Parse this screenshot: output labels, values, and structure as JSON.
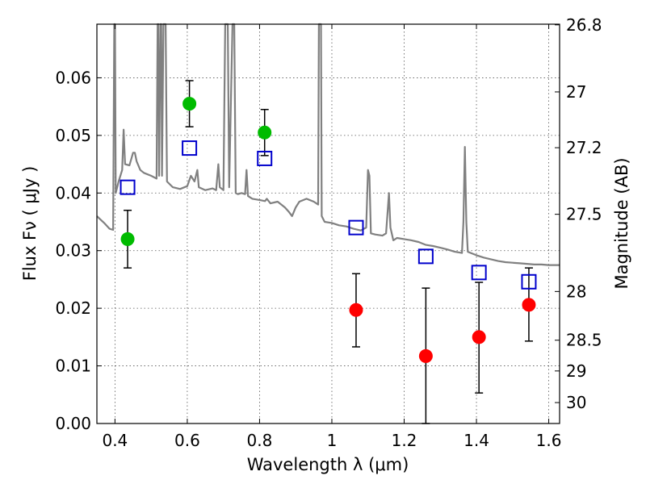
{
  "chart_data": {
    "type": "scatter",
    "xlabel": "Wavelength  λ (μm)",
    "ylabel": "Flux  Fν  ( μJy )",
    "y2label": "Magnitude (AB)",
    "xlim": [
      0.35,
      1.63
    ],
    "ylim": [
      0.0,
      0.0693
    ],
    "grid": true,
    "x_ticks": [
      {
        "value": 0.4,
        "label": "0.4"
      },
      {
        "value": 0.6,
        "label": "0.6"
      },
      {
        "value": 0.8,
        "label": "0.8"
      },
      {
        "value": 1.0,
        "label": "1"
      },
      {
        "value": 1.2,
        "label": "1.2"
      },
      {
        "value": 1.4,
        "label": "1.4"
      },
      {
        "value": 1.6,
        "label": "1.6"
      }
    ],
    "y_ticks": [
      {
        "value": 0.0,
        "label": "0.00"
      },
      {
        "value": 0.01,
        "label": "0.01"
      },
      {
        "value": 0.02,
        "label": "0.02"
      },
      {
        "value": 0.03,
        "label": "0.03"
      },
      {
        "value": 0.04,
        "label": "0.04"
      },
      {
        "value": 0.05,
        "label": "0.05"
      },
      {
        "value": 0.06,
        "label": "0.06"
      }
    ],
    "y2_ticks": [
      {
        "mag": 26.8,
        "label": "26.8"
      },
      {
        "mag": 27.0,
        "label": "27"
      },
      {
        "mag": 27.2,
        "label": "27.2"
      },
      {
        "mag": 27.5,
        "label": "27.5"
      },
      {
        "mag": 28.0,
        "label": "28"
      },
      {
        "mag": 28.5,
        "label": "28.5"
      },
      {
        "mag": 29.0,
        "label": "29"
      },
      {
        "mag": 30.0,
        "label": "30"
      }
    ],
    "model_spectrum": {
      "color": "#808080",
      "points": [
        [
          0.35,
          0.036
        ],
        [
          0.37,
          0.0348
        ],
        [
          0.385,
          0.0338
        ],
        [
          0.395,
          0.0336
        ],
        [
          0.398,
          0.0693
        ],
        [
          0.4,
          0.0693
        ],
        [
          0.402,
          0.04
        ],
        [
          0.41,
          0.042
        ],
        [
          0.42,
          0.044
        ],
        [
          0.424,
          0.051
        ],
        [
          0.428,
          0.045
        ],
        [
          0.44,
          0.0448
        ],
        [
          0.45,
          0.047
        ],
        [
          0.455,
          0.047
        ],
        [
          0.46,
          0.0455
        ],
        [
          0.47,
          0.044
        ],
        [
          0.48,
          0.0435
        ],
        [
          0.5,
          0.043
        ],
        [
          0.515,
          0.0425
        ],
        [
          0.518,
          0.0693
        ],
        [
          0.52,
          0.0693
        ],
        [
          0.522,
          0.043
        ],
        [
          0.526,
          0.0693
        ],
        [
          0.528,
          0.0693
        ],
        [
          0.53,
          0.043
        ],
        [
          0.534,
          0.0693
        ],
        [
          0.54,
          0.0693
        ],
        [
          0.544,
          0.042
        ],
        [
          0.56,
          0.041
        ],
        [
          0.58,
          0.0407
        ],
        [
          0.6,
          0.0412
        ],
        [
          0.61,
          0.043
        ],
        [
          0.62,
          0.042
        ],
        [
          0.628,
          0.044
        ],
        [
          0.632,
          0.041
        ],
        [
          0.65,
          0.0405
        ],
        [
          0.67,
          0.0408
        ],
        [
          0.68,
          0.0405
        ],
        [
          0.686,
          0.045
        ],
        [
          0.69,
          0.041
        ],
        [
          0.7,
          0.0405
        ],
        [
          0.705,
          0.0693
        ],
        [
          0.712,
          0.0693
        ],
        [
          0.716,
          0.041
        ],
        [
          0.725,
          0.0693
        ],
        [
          0.73,
          0.0693
        ],
        [
          0.734,
          0.04
        ],
        [
          0.74,
          0.0398
        ],
        [
          0.75,
          0.04
        ],
        [
          0.76,
          0.0398
        ],
        [
          0.764,
          0.044
        ],
        [
          0.768,
          0.0395
        ],
        [
          0.78,
          0.039
        ],
        [
          0.8,
          0.0388
        ],
        [
          0.815,
          0.0386
        ],
        [
          0.82,
          0.039
        ],
        [
          0.83,
          0.0382
        ],
        [
          0.85,
          0.0385
        ],
        [
          0.87,
          0.0375
        ],
        [
          0.88,
          0.0368
        ],
        [
          0.89,
          0.036
        ],
        [
          0.9,
          0.0375
        ],
        [
          0.91,
          0.0385
        ],
        [
          0.93,
          0.039
        ],
        [
          0.95,
          0.0385
        ],
        [
          0.962,
          0.038
        ],
        [
          0.964,
          0.0693
        ],
        [
          0.97,
          0.0693
        ],
        [
          0.972,
          0.036
        ],
        [
          0.98,
          0.035
        ],
        [
          1.0,
          0.0348
        ],
        [
          1.02,
          0.0344
        ],
        [
          1.04,
          0.0342
        ],
        [
          1.06,
          0.0338
        ],
        [
          1.08,
          0.0335
        ],
        [
          1.095,
          0.034
        ],
        [
          1.1,
          0.044
        ],
        [
          1.104,
          0.043
        ],
        [
          1.108,
          0.033
        ],
        [
          1.12,
          0.0328
        ],
        [
          1.14,
          0.0326
        ],
        [
          1.15,
          0.033
        ],
        [
          1.158,
          0.04
        ],
        [
          1.162,
          0.034
        ],
        [
          1.17,
          0.0318
        ],
        [
          1.18,
          0.0322
        ],
        [
          1.2,
          0.032
        ],
        [
          1.22,
          0.0318
        ],
        [
          1.24,
          0.0315
        ],
        [
          1.26,
          0.031
        ],
        [
          1.28,
          0.0308
        ],
        [
          1.3,
          0.0305
        ],
        [
          1.32,
          0.0302
        ],
        [
          1.34,
          0.0298
        ],
        [
          1.36,
          0.0296
        ],
        [
          1.364,
          0.035
        ],
        [
          1.368,
          0.048
        ],
        [
          1.372,
          0.035
        ],
        [
          1.376,
          0.0298
        ],
        [
          1.4,
          0.0292
        ],
        [
          1.42,
          0.0288
        ],
        [
          1.44,
          0.0285
        ],
        [
          1.46,
          0.0282
        ],
        [
          1.48,
          0.028
        ],
        [
          1.5,
          0.0279
        ],
        [
          1.52,
          0.0278
        ],
        [
          1.54,
          0.0277
        ],
        [
          1.56,
          0.0276
        ],
        [
          1.58,
          0.0276
        ],
        [
          1.6,
          0.0275
        ],
        [
          1.63,
          0.0275
        ]
      ]
    },
    "series": [
      {
        "marker": "circle-filled",
        "color": "#00bb00",
        "points": [
          {
            "x": 0.435,
            "y": 0.032,
            "yerr_low": 0.027,
            "yerr_high": 0.037
          },
          {
            "x": 0.606,
            "y": 0.0555,
            "yerr_low": 0.0515,
            "yerr_high": 0.0595
          },
          {
            "x": 0.814,
            "y": 0.0505,
            "yerr_low": 0.0465,
            "yerr_high": 0.0545
          }
        ]
      },
      {
        "marker": "circle-filled",
        "color": "#ff0000",
        "points": [
          {
            "x": 1.067,
            "y": 0.0197,
            "yerr_low": 0.0133,
            "yerr_high": 0.026
          },
          {
            "x": 1.26,
            "y": 0.0117,
            "yerr_low": 0.0,
            "yerr_high": 0.0235
          },
          {
            "x": 1.407,
            "y": 0.015,
            "yerr_low": 0.0053,
            "yerr_high": 0.0245
          },
          {
            "x": 1.545,
            "y": 0.0206,
            "yerr_low": 0.0143,
            "yerr_high": 0.027
          }
        ]
      },
      {
        "marker": "square-open",
        "color": "#0000cc",
        "points": [
          {
            "x": 0.435,
            "y": 0.041
          },
          {
            "x": 0.606,
            "y": 0.0478
          },
          {
            "x": 0.814,
            "y": 0.046
          },
          {
            "x": 1.067,
            "y": 0.034
          },
          {
            "x": 1.26,
            "y": 0.029
          },
          {
            "x": 1.407,
            "y": 0.0262
          },
          {
            "x": 1.545,
            "y": 0.0246
          }
        ]
      }
    ]
  }
}
